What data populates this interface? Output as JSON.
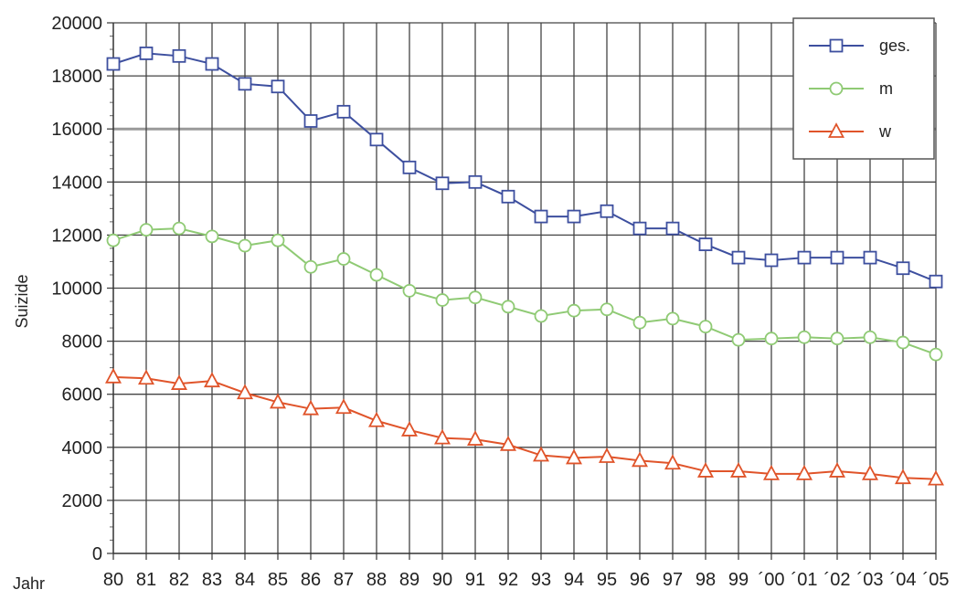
{
  "chart_data": {
    "type": "line",
    "title": "",
    "xlabel": "Jahr",
    "ylabel": "Suizide",
    "ylim": [
      0,
      20000
    ],
    "yticks": [
      0,
      2000,
      4000,
      6000,
      8000,
      10000,
      12000,
      14000,
      16000,
      18000,
      20000
    ],
    "grid": true,
    "legend_position": "top-right",
    "categories": [
      "80",
      "81",
      "82",
      "83",
      "84",
      "85",
      "86",
      "87",
      "88",
      "89",
      "90",
      "91",
      "92",
      "93",
      "94",
      "95",
      "96",
      "97",
      "98",
      "99",
      "´00",
      "´01",
      "´02",
      "´03",
      "´04",
      "´05"
    ],
    "series": [
      {
        "name": "ges.",
        "color": "#3d4f9f",
        "marker": "square",
        "values": [
          18450,
          18850,
          18750,
          18450,
          17700,
          17600,
          16300,
          16650,
          15600,
          14550,
          13950,
          14000,
          13450,
          12700,
          12700,
          12900,
          12250,
          12250,
          11650,
          11150,
          11050,
          11150,
          11150,
          11150,
          10750,
          10250
        ]
      },
      {
        "name": "m",
        "color": "#8fca74",
        "marker": "circle",
        "values": [
          11800,
          12200,
          12250,
          11950,
          11600,
          11800,
          10800,
          11100,
          10500,
          9900,
          9550,
          9650,
          9300,
          8950,
          9150,
          9200,
          8700,
          8850,
          8550,
          8050,
          8100,
          8150,
          8100,
          8150,
          7950,
          7500
        ]
      },
      {
        "name": "w",
        "color": "#e0542a",
        "marker": "triangle",
        "values": [
          6650,
          6600,
          6400,
          6500,
          6050,
          5700,
          5450,
          5500,
          5000,
          4650,
          4350,
          4300,
          4100,
          3700,
          3600,
          3650,
          3500,
          3400,
          3100,
          3100,
          3000,
          3000,
          3100,
          3000,
          2850,
          2800
        ]
      }
    ]
  }
}
